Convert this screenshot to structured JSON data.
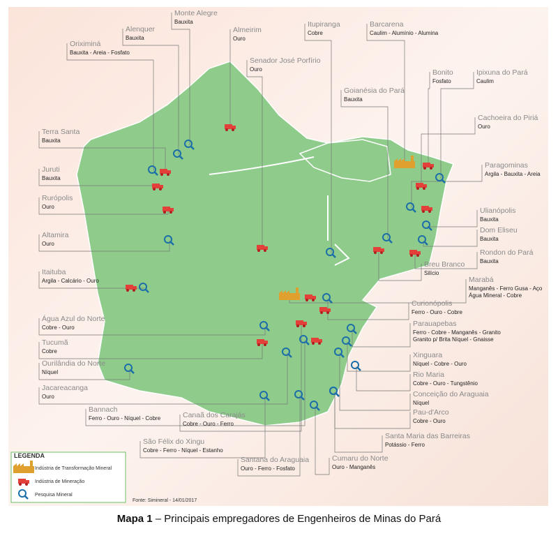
{
  "places": [
    {
      "name": "Monte Alegre",
      "minerals": [
        "Bauxita"
      ]
    },
    {
      "name": "Alenquer",
      "minerals": [
        "Bauxita"
      ]
    },
    {
      "name": "Oriximiná",
      "minerals": [
        "Bauxita - Areia - Fosfato"
      ]
    },
    {
      "name": "Almeirim",
      "minerals": [
        "Ouro"
      ]
    },
    {
      "name": "Itupiranga",
      "minerals": [
        "Cobre"
      ]
    },
    {
      "name": "Barcarena",
      "minerals": [
        "Caulim - Alumínio - Alumina"
      ]
    },
    {
      "name": "Senador José Porfírio",
      "minerals": [
        "Ouro"
      ]
    },
    {
      "name": "Bonito",
      "minerals": [
        "Fosfato"
      ]
    },
    {
      "name": "Ipixuna do Pará",
      "minerals": [
        "Caulim"
      ]
    },
    {
      "name": "Goianésia do Pará",
      "minerals": [
        "Bauxita"
      ]
    },
    {
      "name": "Cachoeira do Piriá",
      "minerals": [
        "Ouro"
      ]
    },
    {
      "name": "Terra Santa",
      "minerals": [
        "Bauxita"
      ]
    },
    {
      "name": "Paragominas",
      "minerals": [
        "Argila - Bauxita - Areia"
      ]
    },
    {
      "name": "Juruti",
      "minerals": [
        "Bauxita"
      ]
    },
    {
      "name": "Rurópolis",
      "minerals": [
        "Ouro"
      ]
    },
    {
      "name": "Ulianópolis",
      "minerals": [
        "Bauxita"
      ]
    },
    {
      "name": "Dom Eliseu",
      "minerals": [
        "Bauxita"
      ]
    },
    {
      "name": "Altamira",
      "minerals": [
        "Ouro"
      ]
    },
    {
      "name": "Rondon do Pará",
      "minerals": [
        "Bauxita"
      ]
    },
    {
      "name": "Breu Branco",
      "minerals": [
        "Silício"
      ]
    },
    {
      "name": "Itaituba",
      "minerals": [
        "Argila - Calcário - Ouro"
      ]
    },
    {
      "name": "Marabá",
      "minerals": [
        "Manganês - Ferro Gusa - Aço",
        "Água Mineral - Cobre"
      ]
    },
    {
      "name": "Curionópolis",
      "minerals": [
        "Ferro - Ouro - Cobre"
      ]
    },
    {
      "name": "Água Azul do Norte",
      "minerals": [
        "Cobre - Ouro"
      ]
    },
    {
      "name": "Parauapebas",
      "minerals": [
        "Ferro - Cobre - Manganês - Granito",
        "Granito p/ Brita Níquel - Gnaisse"
      ]
    },
    {
      "name": "Tucumã",
      "minerals": [
        "Cobre"
      ]
    },
    {
      "name": "Xinguara",
      "minerals": [
        "Níquel - Cobre - Ouro"
      ]
    },
    {
      "name": "Ourilândia do Norte",
      "minerals": [
        "Níquel"
      ]
    },
    {
      "name": "Rio Maria",
      "minerals": [
        "Cobre - Ouro - Tungstênio"
      ]
    },
    {
      "name": "Jacareacanga",
      "minerals": [
        "Ouro"
      ]
    },
    {
      "name": "Conceição do Araguaia",
      "minerals": [
        "Níquel"
      ]
    },
    {
      "name": "Bannach",
      "minerals": [
        "Ferro - Ouro - Níquel - Cobre"
      ]
    },
    {
      "name": "Pau-d'Arco",
      "minerals": [
        "Cobre - Ouro"
      ]
    },
    {
      "name": "Canaã dos Carajás",
      "minerals": [
        "Cobre - Ouro - Ferro"
      ]
    },
    {
      "name": "Santa Maria das Barreiras",
      "minerals": [
        "Potássio - Ferro"
      ]
    },
    {
      "name": "São Félix do Xingu",
      "minerals": [
        "Cobre - Ferro - Níquel - Estanho"
      ]
    },
    {
      "name": "Santana do Araguaia",
      "minerals": [
        "Ouro - Ferro - Fosfato"
      ]
    },
    {
      "name": "Cumaru do Norte",
      "minerals": [
        "Ouro - Manganês"
      ]
    }
  ],
  "legend": {
    "title": "LEGENDA",
    "items": [
      "Indústria de Transformação Mineral",
      "Indústria de Mineração",
      "Pesquisa Mineral"
    ]
  },
  "source": "Fonte: Simineral - 14/01/2017",
  "caption_label": "Mapa 1",
  "caption_text": "– Principais empregadores de Engenheiros de Minas do Pará"
}
